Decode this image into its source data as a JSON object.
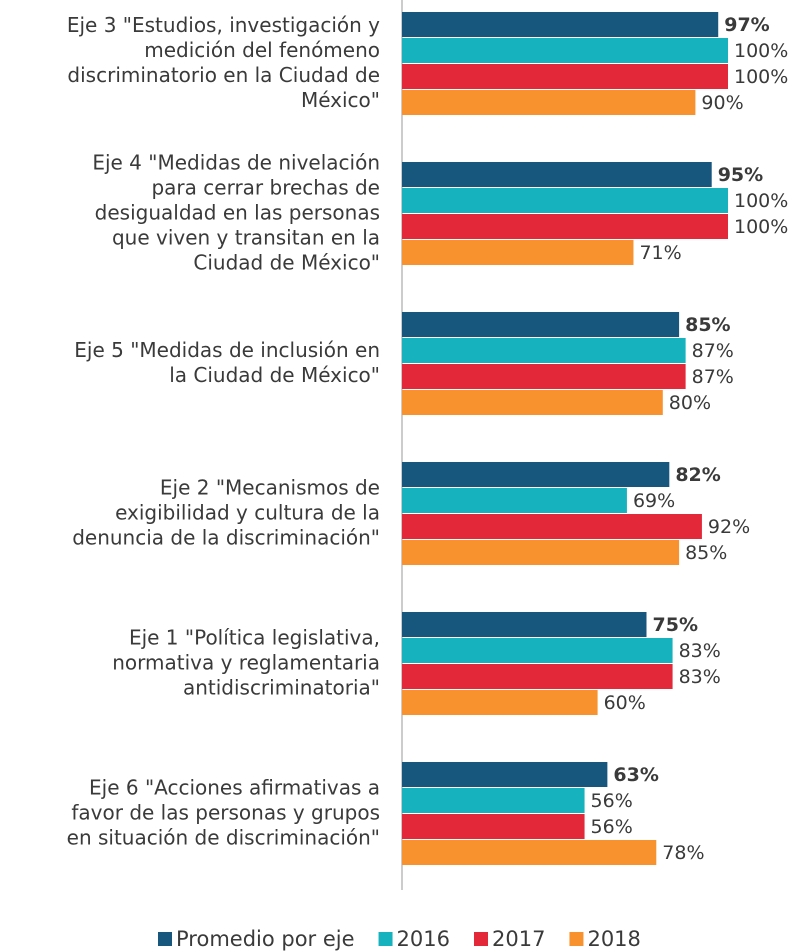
{
  "chart_data": {
    "type": "bar",
    "orientation": "horizontal",
    "categories": [
      [
        "Eje 3 \"Estudios, investigación y",
        "medición del fenómeno",
        "discriminatorio en la Ciudad de",
        "México\""
      ],
      [
        "Eje 4 \"Medidas de nivelación",
        "para cerrar brechas de",
        "desigualdad en las personas",
        "que viven y transitan en la",
        "Ciudad de México\""
      ],
      [
        "Eje 5 \"Medidas de inclusión en",
        "la Ciudad de México\""
      ],
      [
        "Eje 2 \"Mecanismos de",
        "exigibilidad y cultura de la",
        "denuncia de la discriminación\""
      ],
      [
        "Eje 1 \"Política legislativa,",
        "normativa y reglamentaria",
        "antidiscriminatoria\""
      ],
      [
        "Eje 6 \"Acciones afirmativas a",
        "favor de las personas y grupos",
        "en situación de discriminación\""
      ]
    ],
    "series": [
      {
        "name": "Promedio por eje",
        "color": "#17567d",
        "values": [
          97,
          95,
          85,
          82,
          75,
          63
        ],
        "value_labels": [
          "97%",
          "95%",
          "85%",
          "82%",
          "75%",
          "63%"
        ]
      },
      {
        "name": "2016",
        "color": "#16b3bf",
        "values": [
          100,
          100,
          87,
          69,
          83,
          56
        ],
        "value_labels": [
          "100%",
          "100%",
          "87%",
          "69%",
          "83%",
          "56%"
        ]
      },
      {
        "name": "2017",
        "color": "#e3283a",
        "values": [
          100,
          100,
          87,
          92,
          83,
          56
        ],
        "value_labels": [
          "100%",
          "100%",
          "87%",
          "92%",
          "83%",
          "56%"
        ]
      },
      {
        "name": "2018",
        "color": "#f7922f",
        "values": [
          90,
          71,
          80,
          85,
          60,
          78
        ],
        "value_labels": [
          "90%",
          "71%",
          "80%",
          "85%",
          "60%",
          "78%"
        ]
      }
    ],
    "xlim": [
      0,
      100
    ],
    "legend": "bottom"
  }
}
